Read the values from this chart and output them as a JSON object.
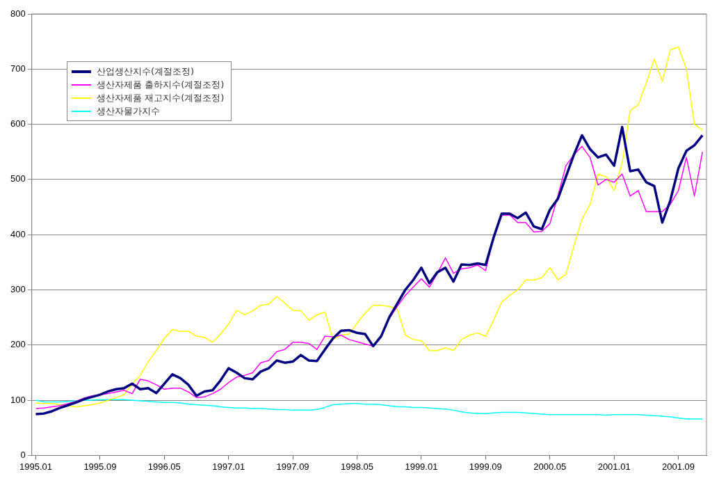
{
  "chart_data": {
    "type": "line",
    "categories": [
      "1995.01",
      null,
      null,
      null,
      null,
      null,
      null,
      null,
      "1995.09",
      null,
      null,
      null,
      null,
      null,
      null,
      null,
      "1996.05",
      null,
      null,
      null,
      null,
      null,
      null,
      null,
      "1997.01",
      null,
      null,
      null,
      null,
      null,
      null,
      null,
      "1997.09",
      null,
      null,
      null,
      null,
      null,
      null,
      null,
      "1998.05",
      null,
      null,
      null,
      null,
      null,
      null,
      null,
      "1999.01",
      null,
      null,
      null,
      null,
      null,
      null,
      null,
      "1999.09",
      null,
      null,
      null,
      null,
      null,
      null,
      null,
      "2000.05",
      null,
      null,
      null,
      null,
      null,
      null,
      null,
      "2001.01",
      null,
      null,
      null,
      null,
      null,
      null,
      null,
      "2001.09",
      null,
      null,
      null
    ],
    "series": [
      {
        "name": "산업생산지수(계절조정)",
        "color": "#000080",
        "values": [
          75,
          76,
          80,
          86,
          91,
          96,
          102,
          106,
          110,
          116,
          120,
          122,
          130,
          120,
          122,
          113,
          130,
          147,
          140,
          128,
          108,
          116,
          118,
          136,
          158,
          150,
          140,
          138,
          152,
          158,
          172,
          168,
          170,
          182,
          172,
          171,
          192,
          212,
          226,
          227,
          222,
          220,
          198,
          216,
          250,
          275,
          300,
          318,
          340,
          312,
          332,
          340,
          315,
          346,
          345,
          348,
          345,
          395,
          438,
          438,
          430,
          440,
          415,
          410,
          445,
          465,
          505,
          545,
          580,
          555,
          540,
          545,
          525,
          595,
          515,
          518,
          495,
          488,
          422,
          462,
          520,
          552,
          562,
          580
        ]
      },
      {
        "name": "생산자제품 출하지수(계절조정)",
        "color": "#ff00ff",
        "values": [
          85,
          86,
          88,
          90,
          94,
          98,
          104,
          108,
          110,
          112,
          115,
          118,
          112,
          138,
          135,
          128,
          120,
          122,
          122,
          115,
          105,
          106,
          112,
          120,
          132,
          142,
          145,
          150,
          168,
          172,
          188,
          192,
          205,
          205,
          203,
          192,
          216,
          215,
          218,
          210,
          206,
          202,
          198,
          218,
          248,
          270,
          290,
          305,
          320,
          305,
          330,
          358,
          330,
          338,
          340,
          345,
          335,
          395,
          435,
          436,
          422,
          422,
          405,
          406,
          420,
          470,
          525,
          545,
          560,
          540,
          490,
          500,
          495,
          510,
          470,
          480,
          442,
          442,
          442,
          455,
          480,
          540,
          470,
          550
        ]
      },
      {
        "name": "생산자제품 재고지수(계절조정)",
        "color": "#ffff00",
        "values": [
          95,
          94,
          94,
          92,
          90,
          88,
          90,
          92,
          95,
          100,
          105,
          110,
          130,
          145,
          170,
          190,
          212,
          228,
          225,
          225,
          216,
          214,
          205,
          220,
          238,
          263,
          255,
          262,
          272,
          274,
          288,
          276,
          263,
          262,
          245,
          255,
          260,
          210,
          218,
          220,
          240,
          258,
          272,
          272,
          270,
          265,
          218,
          210,
          208,
          190,
          190,
          195,
          190,
          210,
          218,
          222,
          216,
          245,
          278,
          290,
          300,
          318,
          318,
          322,
          340,
          318,
          328,
          380,
          428,
          455,
          510,
          505,
          480,
          530,
          625,
          635,
          675,
          718,
          678,
          735,
          740,
          700,
          600,
          590
        ]
      },
      {
        "name": "생산자물가지수",
        "color": "#00ffff",
        "values": [
          100,
          97,
          97,
          97,
          98,
          99,
          100,
          100,
          101,
          101,
          101,
          101,
          100,
          99,
          98,
          97,
          96,
          96,
          95,
          93,
          92,
          91,
          90,
          88,
          87,
          86,
          86,
          85,
          85,
          84,
          83,
          83,
          82,
          82,
          82,
          83,
          87,
          92,
          93,
          94,
          94,
          93,
          93,
          92,
          90,
          88,
          88,
          87,
          87,
          86,
          85,
          84,
          82,
          79,
          77,
          76,
          76,
          77,
          78,
          78,
          78,
          77,
          76,
          75,
          74,
          74,
          74,
          74,
          74,
          74,
          74,
          73,
          74,
          74,
          74,
          74,
          73,
          72,
          71,
          70,
          68,
          66,
          66,
          66
        ]
      }
    ],
    "ylim": [
      0,
      800
    ],
    "yticks": [
      0,
      100,
      200,
      300,
      400,
      500,
      600,
      700,
      800
    ],
    "grid": "y",
    "legend": "top left",
    "marker": "none",
    "line_style": "solid"
  }
}
